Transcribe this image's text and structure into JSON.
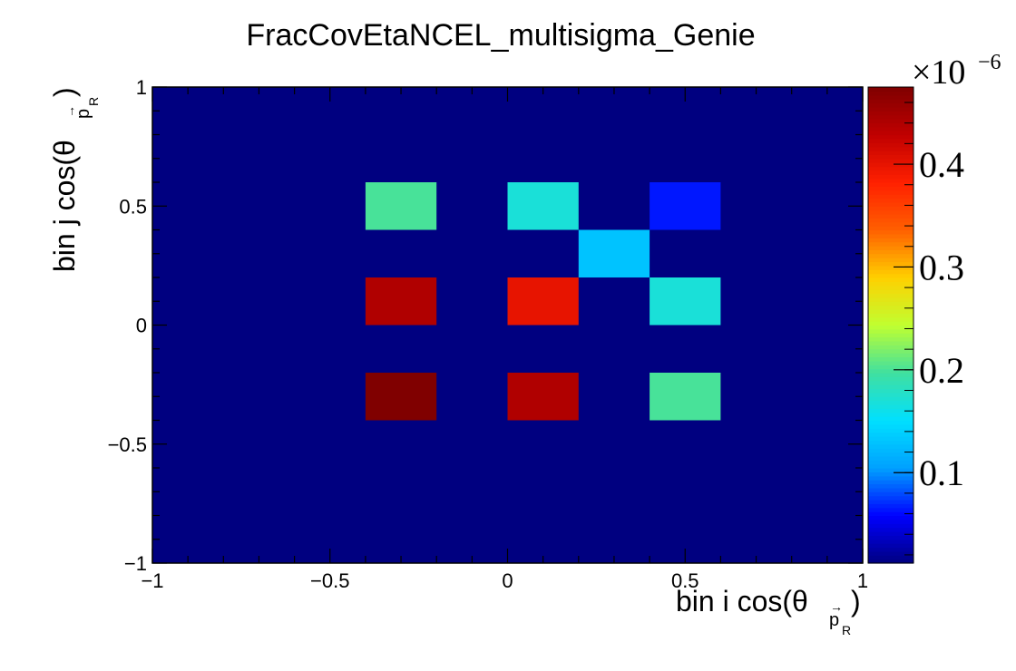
{
  "chart_data": {
    "type": "heatmap",
    "title": "FracCovEtaNCEL_multisigma_Genie",
    "xlabel": "bin i cos(θ p_R)",
    "ylabel": "bin j cos(θ p_R)",
    "xlim": [
      -1,
      1
    ],
    "ylim": [
      -1,
      1
    ],
    "x_bin_edges": [
      -1,
      -0.8,
      -0.6,
      -0.4,
      -0.2,
      0,
      0.2,
      0.4,
      0.6,
      0.8,
      1
    ],
    "y_bin_edges": [
      -1,
      -0.8,
      -0.6,
      -0.4,
      -0.2,
      0,
      0.2,
      0.4,
      0.6,
      0.8,
      1
    ],
    "x_ticks": [
      -1,
      -0.5,
      0,
      0.5,
      1
    ],
    "x_tick_labels": [
      "−1",
      "−0.5",
      "0",
      "0.5",
      "1"
    ],
    "y_ticks": [
      -1,
      -0.5,
      0,
      0.5,
      1
    ],
    "y_tick_labels": [
      "−1",
      "−0.5",
      "0",
      "0.5",
      "1"
    ],
    "colorbar": {
      "min": 0.012,
      "max": 0.475,
      "ticks": [
        0.1,
        0.2,
        0.3,
        0.4
      ],
      "tick_labels": [
        "0.1",
        "0.2",
        "0.3",
        "0.4"
      ],
      "exponent_label": "×10",
      "exponent_power": "−6",
      "colormap": [
        "#000080",
        "#0000ff",
        "#00a0ff",
        "#00e0ff",
        "#40e0a0",
        "#c0ff30",
        "#ffd000",
        "#ff6000",
        "#ff2000",
        "#c00000",
        "#800000"
      ]
    },
    "cells": [
      {
        "x": -0.3,
        "y": 0.5,
        "value": 0.2
      },
      {
        "x": 0.1,
        "y": 0.5,
        "value": 0.17
      },
      {
        "x": 0.5,
        "y": 0.5,
        "value": 0.065
      },
      {
        "x": 0.3,
        "y": 0.3,
        "value": 0.13
      },
      {
        "x": -0.3,
        "y": 0.1,
        "value": 0.44
      },
      {
        "x": 0.1,
        "y": 0.1,
        "value": 0.4
      },
      {
        "x": 0.5,
        "y": 0.1,
        "value": 0.17
      },
      {
        "x": -0.3,
        "y": -0.3,
        "value": 0.475
      },
      {
        "x": 0.1,
        "y": -0.3,
        "value": 0.44
      },
      {
        "x": 0.5,
        "y": -0.3,
        "value": 0.2
      }
    ],
    "background_value": 0.012,
    "grid": false,
    "legend": "colorbar-right"
  }
}
